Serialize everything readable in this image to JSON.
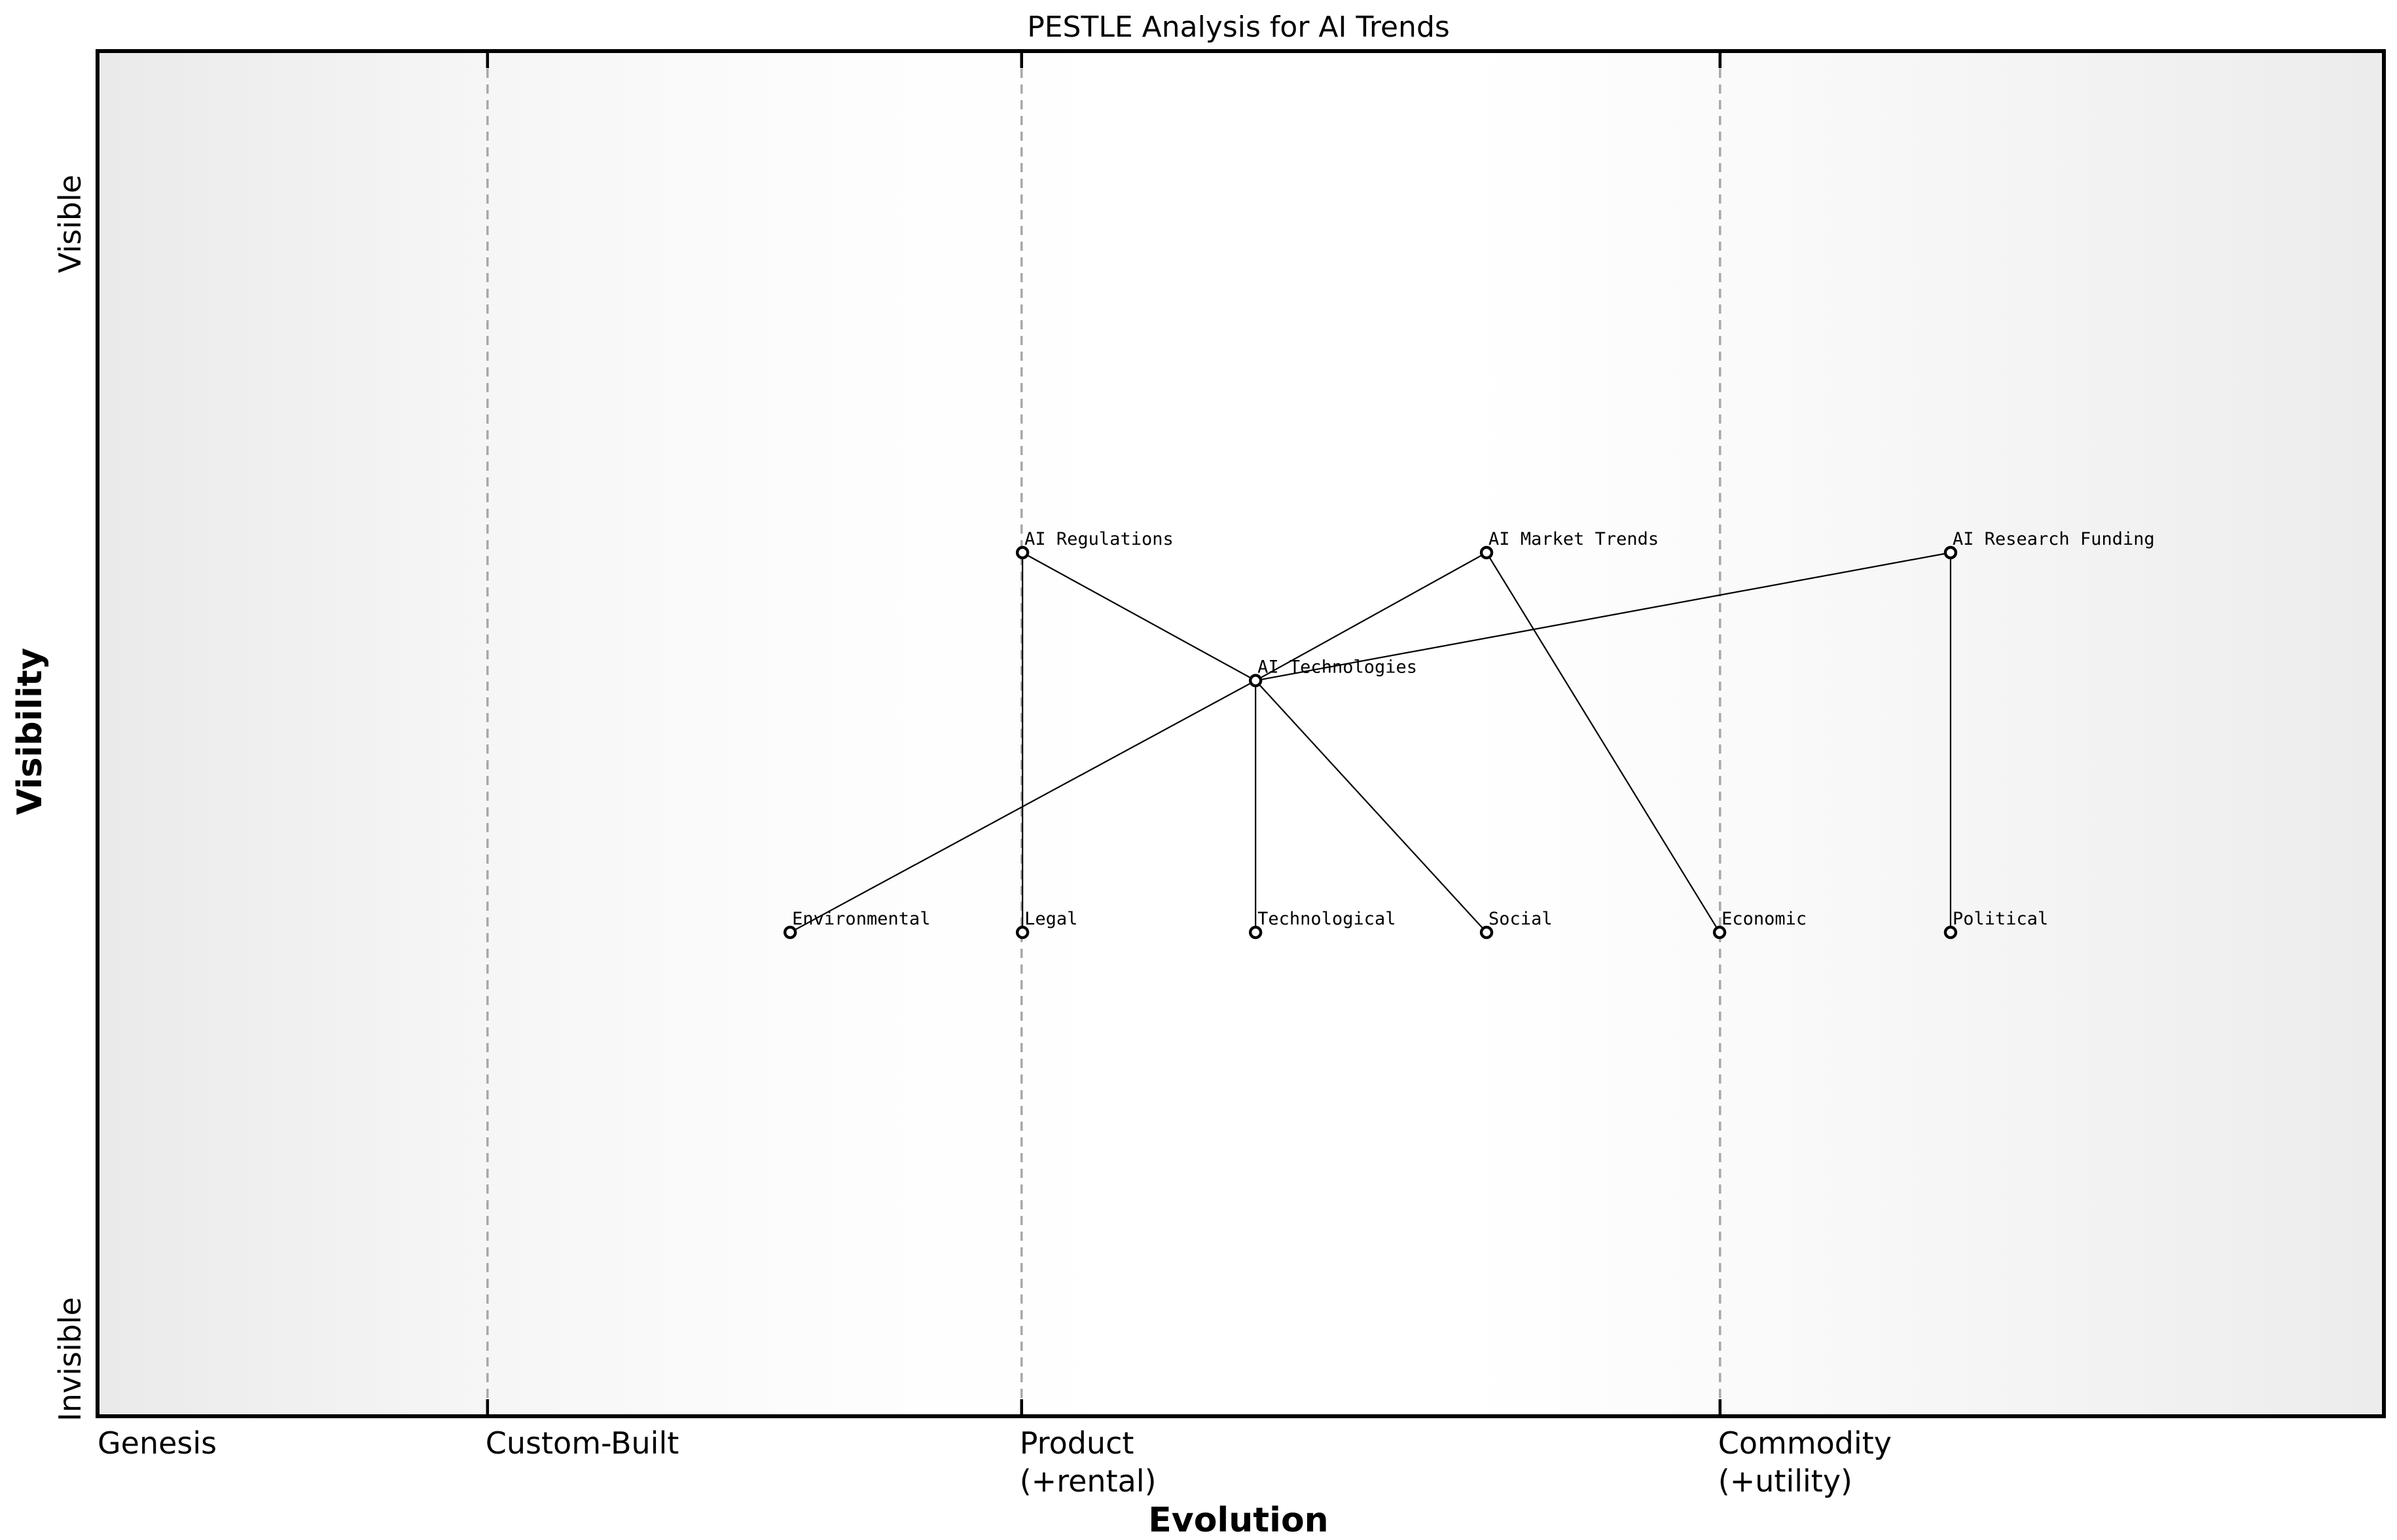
{
  "chart_data": {
    "type": "scatter",
    "title": "PESTLE Analysis for AI Trends",
    "xlabel": "Evolution",
    "ylabel": "Visibility",
    "grid": false,
    "legend": "none",
    "x_axis": {
      "range": [
        0,
        1
      ],
      "stages": [
        {
          "label": "Genesis",
          "x": 0
        },
        {
          "label": "Custom-Built",
          "x": 0.17
        },
        {
          "label": "Product\n(+rental)",
          "x": 0.404
        },
        {
          "label": "Commodity\n(+utility)",
          "x": 0.71
        }
      ],
      "boundaries": [
        0.17,
        0.404,
        0.71
      ]
    },
    "y_axis": {
      "range": [
        0,
        1
      ],
      "ticks": [
        {
          "label": "Visible",
          "y": 0.873
        },
        {
          "label": "Invisible",
          "y": 0.039
        }
      ]
    },
    "nodes": [
      {
        "name": "AI Technologies",
        "evolution": 0.5065,
        "visibility": 0.539
      },
      {
        "name": "AI Regulations",
        "evolution": 0.4044,
        "visibility": 0.633
      },
      {
        "name": "AI Market Trends",
        "evolution": 0.6077,
        "visibility": 0.633
      },
      {
        "name": "AI Research Funding",
        "evolution": 0.811,
        "visibility": 0.633
      },
      {
        "name": "Environmental",
        "evolution": 0.3026,
        "visibility": 0.354
      },
      {
        "name": "Legal",
        "evolution": 0.4044,
        "visibility": 0.354
      },
      {
        "name": "Technological",
        "evolution": 0.5065,
        "visibility": 0.354
      },
      {
        "name": "Social",
        "evolution": 0.6077,
        "visibility": 0.354
      },
      {
        "name": "Economic",
        "evolution": 0.7098,
        "visibility": 0.354
      },
      {
        "name": "Political",
        "evolution": 0.811,
        "visibility": 0.354
      }
    ],
    "edges": [
      {
        "from": "AI Technologies",
        "to": "AI Regulations"
      },
      {
        "from": "AI Technologies",
        "to": "AI Market Trends"
      },
      {
        "from": "AI Technologies",
        "to": "AI Research Funding"
      },
      {
        "from": "AI Technologies",
        "to": "Environmental"
      },
      {
        "from": "AI Technologies",
        "to": "Technological"
      },
      {
        "from": "AI Technologies",
        "to": "Social"
      },
      {
        "from": "AI Regulations",
        "to": "Legal"
      },
      {
        "from": "AI Market Trends",
        "to": "Economic"
      },
      {
        "from": "AI Research Funding",
        "to": "Political"
      }
    ],
    "style": {
      "edge_color": "#000000",
      "edge_width": 2.2,
      "node_fill": "#ffffff",
      "node_stroke": "#000000",
      "node_stroke_width": 4.4,
      "node_radius": 8,
      "boundary_color": "#a8a8a8",
      "boundary_dash": "14 10",
      "tick_color": "#000000"
    }
  }
}
